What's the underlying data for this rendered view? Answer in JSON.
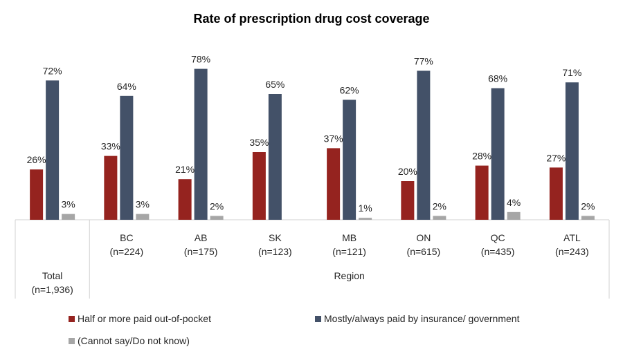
{
  "chart_data": {
    "type": "bar",
    "title": "Rate of prescription drug cost coverage",
    "xlabel": "",
    "ylabel": "",
    "ylim": [
      0,
      80
    ],
    "grid": false,
    "legend_position": "bottom",
    "groups": [
      {
        "label": "Total",
        "categories": [
          {
            "name": "Total",
            "n": "(n=1,936)"
          }
        ]
      },
      {
        "label": "Region",
        "categories": [
          {
            "name": "BC",
            "n": "(n=224)"
          },
          {
            "name": "AB",
            "n": "(n=175)"
          },
          {
            "name": "SK",
            "n": "(n=123)"
          },
          {
            "name": "MB",
            "n": "(n=121)"
          },
          {
            "name": "ON",
            "n": "(n=615)"
          },
          {
            "name": "QC",
            "n": "(n=435)"
          },
          {
            "name": "ATL",
            "n": "(n=243)"
          }
        ]
      }
    ],
    "categories": [
      "Total",
      "BC",
      "AB",
      "SK",
      "MB",
      "ON",
      "QC",
      "ATL"
    ],
    "series": [
      {
        "name": "Half or more paid out-of-pocket",
        "color": "#95231f",
        "values": [
          26,
          33,
          21,
          35,
          37,
          20,
          28,
          27
        ]
      },
      {
        "name": "Mostly/always paid by insurance/ government",
        "color": "#435168",
        "values": [
          72,
          64,
          78,
          65,
          62,
          77,
          68,
          71
        ]
      },
      {
        "name": "(Cannot say/Do not know)",
        "color": "#a6a6a6",
        "values": [
          3,
          3,
          2,
          null,
          1,
          2,
          4,
          2
        ]
      }
    ],
    "value_suffix": "%"
  }
}
